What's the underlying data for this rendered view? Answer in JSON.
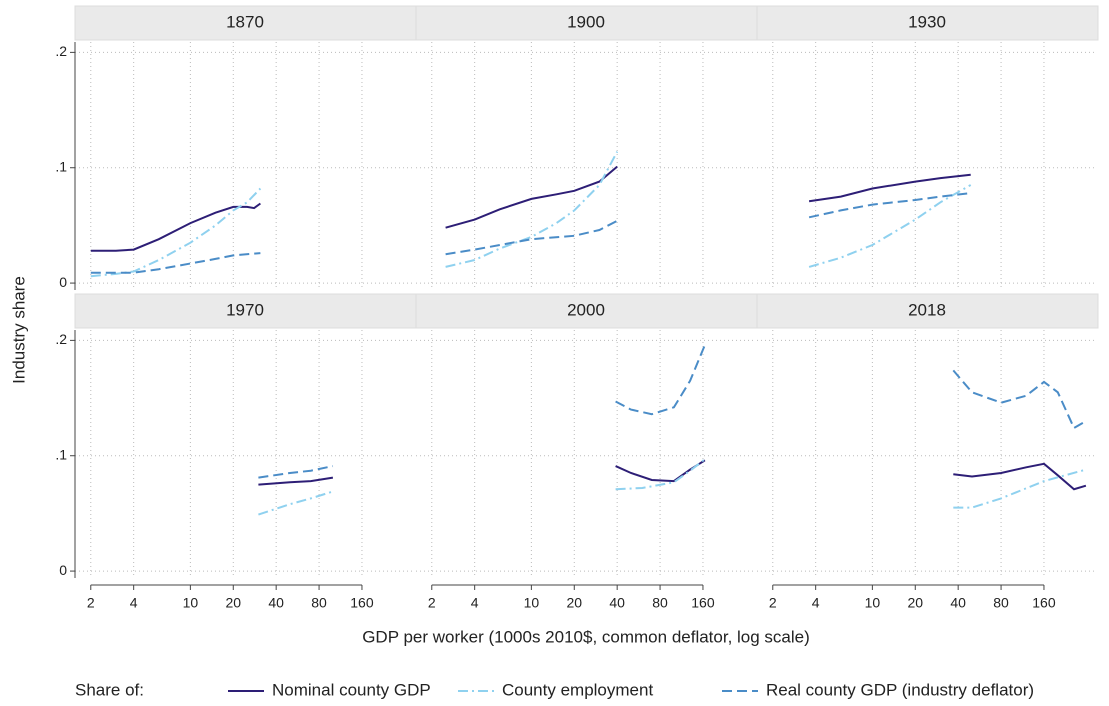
{
  "ylabel": "Industry share",
  "xlabel": "GDP per worker (1000s 2010$, common deflator, log scale)",
  "xscale": "log",
  "xlim": [
    1.55,
    377
  ],
  "xticks": [
    2,
    4,
    10,
    20,
    40,
    80,
    160
  ],
  "ylim": [
    -0.006,
    0.209
  ],
  "yticks": [
    0,
    {
      "value": 0.1,
      "label": ".1"
    },
    {
      "value": 0.2,
      "label": ".2"
    }
  ],
  "grid": true,
  "legend": {
    "title": "Share of:",
    "entries": [
      {
        "name": "Nominal county GDP",
        "color": "#2d1e76",
        "dash": "solid"
      },
      {
        "name": "County employment",
        "color": "#8fd1ef",
        "dash": "dashdot"
      },
      {
        "name": "Real county GDP (industry deflator)",
        "color": "#4a8cc7",
        "dash": "dash"
      }
    ]
  },
  "chart_data": [
    {
      "type": "line",
      "title": "1870",
      "series": [
        {
          "x": [
            2,
            3,
            4,
            6,
            10,
            15,
            20,
            25,
            28,
            31
          ],
          "values": [
            0.028,
            0.028,
            0.029,
            0.038,
            0.052,
            0.061,
            0.066,
            0.066,
            0.065,
            0.069
          ]
        },
        {
          "x": [
            2,
            3,
            4,
            6,
            10,
            15,
            20,
            25,
            31
          ],
          "values": [
            0.006,
            0.008,
            0.01,
            0.02,
            0.035,
            0.05,
            0.063,
            0.07,
            0.082
          ]
        },
        {
          "x": [
            2,
            4,
            6,
            10,
            15,
            20,
            31
          ],
          "values": [
            0.009,
            0.009,
            0.012,
            0.017,
            0.021,
            0.024,
            0.026
          ]
        }
      ]
    },
    {
      "type": "line",
      "title": "1900",
      "series": [
        {
          "x": [
            2.5,
            4,
            6,
            10,
            15,
            20,
            30,
            40
          ],
          "values": [
            0.048,
            0.055,
            0.064,
            0.073,
            0.077,
            0.08,
            0.088,
            0.101
          ]
        },
        {
          "x": [
            2.5,
            4,
            6,
            10,
            15,
            20,
            30,
            40
          ],
          "values": [
            0.014,
            0.02,
            0.03,
            0.04,
            0.052,
            0.063,
            0.085,
            0.114
          ]
        },
        {
          "x": [
            2.5,
            4,
            6,
            10,
            20,
            30,
            40
          ],
          "values": [
            0.025,
            0.029,
            0.033,
            0.038,
            0.041,
            0.046,
            0.054
          ]
        }
      ]
    },
    {
      "type": "line",
      "title": "1930",
      "series": [
        {
          "x": [
            3.6,
            6,
            10,
            20,
            30,
            49
          ],
          "values": [
            0.071,
            0.075,
            0.082,
            0.088,
            0.091,
            0.094
          ]
        },
        {
          "x": [
            3.6,
            6,
            10,
            20,
            30,
            49
          ],
          "values": [
            0.014,
            0.022,
            0.033,
            0.055,
            0.07,
            0.085
          ]
        },
        {
          "x": [
            3.6,
            6,
            10,
            20,
            30,
            49
          ],
          "values": [
            0.057,
            0.063,
            0.068,
            0.072,
            0.075,
            0.078
          ]
        }
      ]
    },
    {
      "type": "line",
      "title": "1970",
      "series": [
        {
          "x": [
            30,
            50,
            70,
            100
          ],
          "values": [
            0.075,
            0.077,
            0.078,
            0.081
          ]
        },
        {
          "x": [
            30,
            50,
            70,
            100
          ],
          "values": [
            0.049,
            0.058,
            0.063,
            0.069
          ]
        },
        {
          "x": [
            30,
            50,
            70,
            100
          ],
          "values": [
            0.081,
            0.085,
            0.087,
            0.091
          ]
        }
      ]
    },
    {
      "type": "line",
      "title": "2000",
      "series": [
        {
          "x": [
            39,
            50,
            70,
            100,
            130,
            165
          ],
          "values": [
            0.091,
            0.085,
            0.079,
            0.078,
            0.088,
            0.096
          ]
        },
        {
          "x": [
            39,
            60,
            100,
            130,
            165
          ],
          "values": [
            0.071,
            0.072,
            0.077,
            0.087,
            0.097
          ]
        },
        {
          "x": [
            39,
            50,
            70,
            100,
            130,
            165
          ],
          "values": [
            0.147,
            0.14,
            0.136,
            0.142,
            0.165,
            0.196
          ]
        }
      ]
    },
    {
      "type": "line",
      "title": "2018",
      "series": [
        {
          "x": [
            37,
            50,
            80,
            120,
            160,
            200,
            260,
            315
          ],
          "values": [
            0.084,
            0.082,
            0.085,
            0.09,
            0.093,
            0.083,
            0.071,
            0.074
          ]
        },
        {
          "x": [
            37,
            50,
            80,
            160,
            315
          ],
          "values": [
            0.055,
            0.055,
            0.063,
            0.078,
            0.088
          ]
        },
        {
          "x": [
            37,
            50,
            80,
            120,
            160,
            200,
            260,
            315
          ],
          "values": [
            0.174,
            0.155,
            0.146,
            0.152,
            0.164,
            0.155,
            0.124,
            0.13
          ]
        }
      ]
    }
  ]
}
